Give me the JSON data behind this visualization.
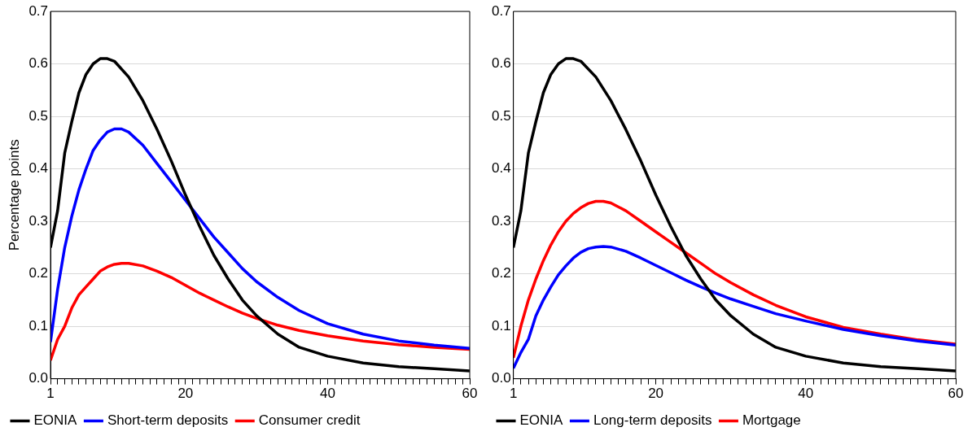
{
  "chart_data": [
    {
      "type": "line",
      "ylabel": "Percentage points",
      "xlim": [
        1,
        60
      ],
      "ylim": [
        0,
        0.7
      ],
      "xticks": [
        1,
        {
          "value": 2,
          "label": null
        },
        {
          "value": 3,
          "label": null
        },
        {
          "value": 4,
          "label": null
        },
        {
          "value": 5,
          "label": null
        },
        {
          "value": 6,
          "label": null
        },
        {
          "value": 7,
          "label": null
        },
        {
          "value": 8,
          "label": null
        },
        {
          "value": 9,
          "label": null
        },
        {
          "value": 10,
          "label": null
        },
        {
          "value": 11,
          "label": null
        },
        {
          "value": 12,
          "label": null
        },
        {
          "value": 13,
          "label": null
        },
        {
          "value": 14,
          "label": null
        },
        {
          "value": 15,
          "label": null
        },
        {
          "value": 16,
          "label": null
        },
        {
          "value": 17,
          "label": null
        },
        {
          "value": 18,
          "label": null
        },
        {
          "value": 19,
          "label": null
        },
        20,
        {
          "value": 21,
          "label": null
        },
        {
          "value": 22,
          "label": null
        },
        {
          "value": 23,
          "label": null
        },
        {
          "value": 24,
          "label": null
        },
        {
          "value": 25,
          "label": null
        },
        {
          "value": 26,
          "label": null
        },
        {
          "value": 27,
          "label": null
        },
        {
          "value": 28,
          "label": null
        },
        {
          "value": 29,
          "label": null
        },
        {
          "value": 30,
          "label": null
        },
        {
          "value": 31,
          "label": null
        },
        {
          "value": 32,
          "label": null
        },
        {
          "value": 33,
          "label": null
        },
        {
          "value": 34,
          "label": null
        },
        {
          "value": 35,
          "label": null
        },
        {
          "value": 36,
          "label": null
        },
        {
          "value": 37,
          "label": null
        },
        {
          "value": 38,
          "label": null
        },
        {
          "value": 39,
          "label": null
        },
        40,
        {
          "value": 41,
          "label": null
        },
        {
          "value": 42,
          "label": null
        },
        {
          "value": 43,
          "label": null
        },
        {
          "value": 44,
          "label": null
        },
        {
          "value": 45,
          "label": null
        },
        {
          "value": 46,
          "label": null
        },
        {
          "value": 47,
          "label": null
        },
        {
          "value": 48,
          "label": null
        },
        {
          "value": 49,
          "label": null
        },
        {
          "value": 50,
          "label": null
        },
        {
          "value": 51,
          "label": null
        },
        {
          "value": 52,
          "label": null
        },
        {
          "value": 53,
          "label": null
        },
        {
          "value": 54,
          "label": null
        },
        {
          "value": 55,
          "label": null
        },
        {
          "value": 56,
          "label": null
        },
        {
          "value": 57,
          "label": null
        },
        {
          "value": 58,
          "label": null
        },
        {
          "value": 59,
          "label": null
        },
        60
      ],
      "yticks": [
        {
          "value": 0,
          "label": "0.0"
        },
        0.1,
        0.2,
        0.3,
        0.4,
        0.5,
        0.6,
        0.7
      ],
      "grid": "y",
      "legend": "bottom",
      "marker": "none",
      "line_style": "solid",
      "series": [
        {
          "name": "EONIA",
          "color": "#000000",
          "x": [
            1,
            2,
            3,
            4,
            5,
            6,
            7,
            8,
            9,
            10,
            12,
            14,
            16,
            18,
            20,
            22,
            24,
            26,
            28,
            30,
            33,
            36,
            40,
            45,
            50,
            55,
            60
          ],
          "values": [
            0.25,
            0.32,
            0.43,
            0.49,
            0.545,
            0.58,
            0.6,
            0.61,
            0.61,
            0.605,
            0.575,
            0.53,
            0.475,
            0.415,
            0.35,
            0.29,
            0.235,
            0.19,
            0.15,
            0.12,
            0.085,
            0.06,
            0.043,
            0.03,
            0.023,
            0.019,
            0.015
          ]
        },
        {
          "name": "Short-term deposits",
          "color": "#0000ff",
          "x": [
            1,
            2,
            3,
            4,
            5,
            6,
            7,
            8,
            9,
            10,
            11,
            12,
            14,
            16,
            18,
            20,
            22,
            24,
            26,
            28,
            30,
            33,
            36,
            40,
            45,
            50,
            55,
            60
          ],
          "values": [
            0.07,
            0.17,
            0.25,
            0.31,
            0.36,
            0.4,
            0.435,
            0.455,
            0.47,
            0.476,
            0.476,
            0.47,
            0.445,
            0.41,
            0.375,
            0.34,
            0.305,
            0.27,
            0.24,
            0.21,
            0.185,
            0.155,
            0.13,
            0.105,
            0.085,
            0.072,
            0.064,
            0.058
          ]
        },
        {
          "name": "Consumer credit",
          "color": "#ff0000",
          "x": [
            1,
            2,
            3,
            4,
            5,
            6,
            7,
            8,
            9,
            10,
            11,
            12,
            14,
            16,
            18,
            20,
            22,
            24,
            26,
            28,
            30,
            33,
            36,
            40,
            45,
            50,
            55,
            60
          ],
          "values": [
            0.035,
            0.075,
            0.1,
            0.135,
            0.16,
            0.175,
            0.19,
            0.205,
            0.213,
            0.218,
            0.22,
            0.22,
            0.215,
            0.205,
            0.193,
            0.178,
            0.163,
            0.15,
            0.137,
            0.125,
            0.115,
            0.102,
            0.092,
            0.082,
            0.072,
            0.065,
            0.06,
            0.056
          ]
        }
      ]
    },
    {
      "type": "line",
      "xlim": [
        1,
        60
      ],
      "ylim": [
        0,
        0.7
      ],
      "xticks": [
        1,
        {
          "value": 2,
          "label": null
        },
        {
          "value": 3,
          "label": null
        },
        {
          "value": 4,
          "label": null
        },
        {
          "value": 5,
          "label": null
        },
        {
          "value": 6,
          "label": null
        },
        {
          "value": 7,
          "label": null
        },
        {
          "value": 8,
          "label": null
        },
        {
          "value": 9,
          "label": null
        },
        {
          "value": 10,
          "label": null
        },
        {
          "value": 11,
          "label": null
        },
        {
          "value": 12,
          "label": null
        },
        {
          "value": 13,
          "label": null
        },
        {
          "value": 14,
          "label": null
        },
        {
          "value": 15,
          "label": null
        },
        {
          "value": 16,
          "label": null
        },
        {
          "value": 17,
          "label": null
        },
        {
          "value": 18,
          "label": null
        },
        {
          "value": 19,
          "label": null
        },
        20,
        {
          "value": 21,
          "label": null
        },
        {
          "value": 22,
          "label": null
        },
        {
          "value": 23,
          "label": null
        },
        {
          "value": 24,
          "label": null
        },
        {
          "value": 25,
          "label": null
        },
        {
          "value": 26,
          "label": null
        },
        {
          "value": 27,
          "label": null
        },
        {
          "value": 28,
          "label": null
        },
        {
          "value": 29,
          "label": null
        },
        {
          "value": 30,
          "label": null
        },
        {
          "value": 31,
          "label": null
        },
        {
          "value": 32,
          "label": null
        },
        {
          "value": 33,
          "label": null
        },
        {
          "value": 34,
          "label": null
        },
        {
          "value": 35,
          "label": null
        },
        {
          "value": 36,
          "label": null
        },
        {
          "value": 37,
          "label": null
        },
        {
          "value": 38,
          "label": null
        },
        {
          "value": 39,
          "label": null
        },
        40,
        {
          "value": 41,
          "label": null
        },
        {
          "value": 42,
          "label": null
        },
        {
          "value": 43,
          "label": null
        },
        {
          "value": 44,
          "label": null
        },
        {
          "value": 45,
          "label": null
        },
        {
          "value": 46,
          "label": null
        },
        {
          "value": 47,
          "label": null
        },
        {
          "value": 48,
          "label": null
        },
        {
          "value": 49,
          "label": null
        },
        {
          "value": 50,
          "label": null
        },
        {
          "value": 51,
          "label": null
        },
        {
          "value": 52,
          "label": null
        },
        {
          "value": 53,
          "label": null
        },
        {
          "value": 54,
          "label": null
        },
        {
          "value": 55,
          "label": null
        },
        {
          "value": 56,
          "label": null
        },
        {
          "value": 57,
          "label": null
        },
        {
          "value": 58,
          "label": null
        },
        {
          "value": 59,
          "label": null
        },
        60
      ],
      "yticks": [
        {
          "value": 0,
          "label": "0.0"
        },
        0.1,
        0.2,
        0.3,
        0.4,
        0.5,
        0.6,
        0.7
      ],
      "grid": "y",
      "legend": "bottom",
      "marker": "none",
      "line_style": "solid",
      "series": [
        {
          "name": "EONIA",
          "color": "#000000",
          "x": [
            1,
            2,
            3,
            4,
            5,
            6,
            7,
            8,
            9,
            10,
            12,
            14,
            16,
            18,
            20,
            22,
            24,
            26,
            28,
            30,
            33,
            36,
            40,
            45,
            50,
            55,
            60
          ],
          "values": [
            0.25,
            0.32,
            0.43,
            0.49,
            0.545,
            0.58,
            0.6,
            0.61,
            0.61,
            0.605,
            0.575,
            0.53,
            0.475,
            0.415,
            0.35,
            0.29,
            0.235,
            0.19,
            0.15,
            0.12,
            0.085,
            0.06,
            0.043,
            0.03,
            0.023,
            0.019,
            0.015
          ]
        },
        {
          "name": "Long-term deposits",
          "color": "#0000ff",
          "x": [
            1,
            2,
            3,
            4,
            5,
            6,
            7,
            8,
            9,
            10,
            11,
            12,
            13,
            14,
            16,
            18,
            20,
            22,
            24,
            26,
            28,
            30,
            33,
            36,
            40,
            45,
            50,
            55,
            60
          ],
          "values": [
            0.02,
            0.05,
            0.075,
            0.12,
            0.15,
            0.175,
            0.198,
            0.215,
            0.23,
            0.241,
            0.248,
            0.251,
            0.252,
            0.251,
            0.243,
            0.23,
            0.216,
            0.202,
            0.188,
            0.175,
            0.163,
            0.152,
            0.138,
            0.124,
            0.11,
            0.094,
            0.082,
            0.072,
            0.064
          ]
        },
        {
          "name": "Mortgage",
          "color": "#ff0000",
          "x": [
            1,
            2,
            3,
            4,
            5,
            6,
            7,
            8,
            9,
            10,
            11,
            12,
            13,
            14,
            16,
            18,
            20,
            22,
            24,
            26,
            28,
            30,
            33,
            36,
            40,
            45,
            50,
            55,
            60
          ],
          "values": [
            0.04,
            0.1,
            0.15,
            0.19,
            0.225,
            0.255,
            0.28,
            0.3,
            0.315,
            0.326,
            0.334,
            0.338,
            0.338,
            0.335,
            0.32,
            0.3,
            0.28,
            0.26,
            0.24,
            0.22,
            0.2,
            0.183,
            0.16,
            0.14,
            0.118,
            0.098,
            0.085,
            0.074,
            0.066
          ]
        }
      ]
    }
  ]
}
